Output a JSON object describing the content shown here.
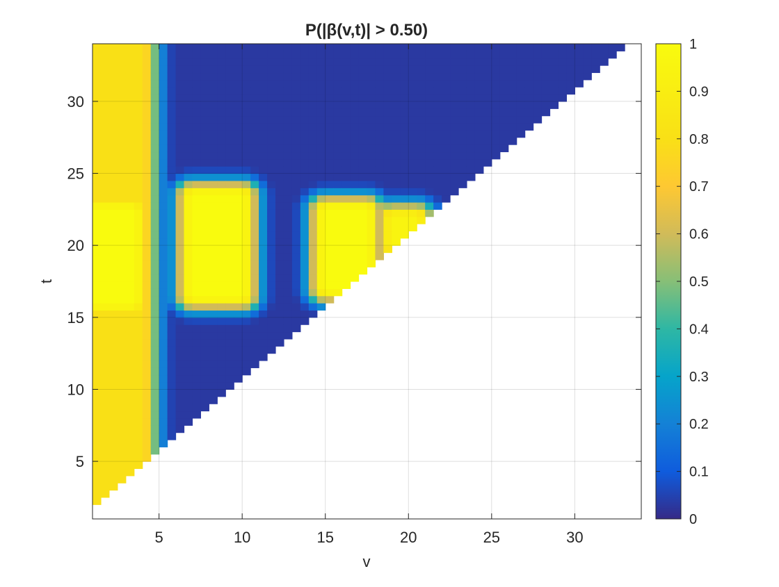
{
  "chart_data": {
    "type": "heatmap",
    "title": "P(|β(v,t)| > 0.50)",
    "xlabel": "v",
    "ylabel": "t",
    "xlim": [
      1,
      34
    ],
    "ylim": [
      1,
      34
    ],
    "xticks": [
      5,
      10,
      15,
      20,
      25,
      30
    ],
    "yticks": [
      5,
      10,
      15,
      20,
      25,
      30
    ],
    "xtick_labels": [
      "5",
      "10",
      "15",
      "20",
      "25",
      "30"
    ],
    "ytick_labels": [
      "5",
      "10",
      "15",
      "20",
      "25",
      "30"
    ],
    "grid": true,
    "mask": "values defined only where t > v",
    "colormap": "parula",
    "colorbar": {
      "range": [
        0,
        1
      ],
      "ticks": [
        0,
        0.1,
        0.2,
        0.3,
        0.4,
        0.5,
        0.6,
        0.7,
        0.8,
        0.9,
        1
      ],
      "tick_labels": [
        "0",
        "0.1",
        "0.2",
        "0.3",
        "0.4",
        "0.5",
        "0.6",
        "0.7",
        "0.8",
        "0.9",
        "1"
      ]
    },
    "background_level": 0.03,
    "hotspots": [
      {
        "v_range": [
          1,
          4
        ],
        "t_range": [
          2,
          34
        ],
        "value": 0.8
      },
      {
        "v_range": [
          1,
          3.5
        ],
        "t_range": [
          16,
          22.5
        ],
        "value": 1.0
      },
      {
        "v_range": [
          7,
          10
        ],
        "t_range": [
          16.5,
          23.5
        ],
        "value": 1.0
      },
      {
        "v_range": [
          15,
          17.5
        ],
        "t_range": [
          17,
          22.5
        ],
        "value": 1.0
      },
      {
        "v_range": [
          19,
          20.5
        ],
        "t_range": [
          20,
          22
        ],
        "value": 0.95
      }
    ]
  }
}
